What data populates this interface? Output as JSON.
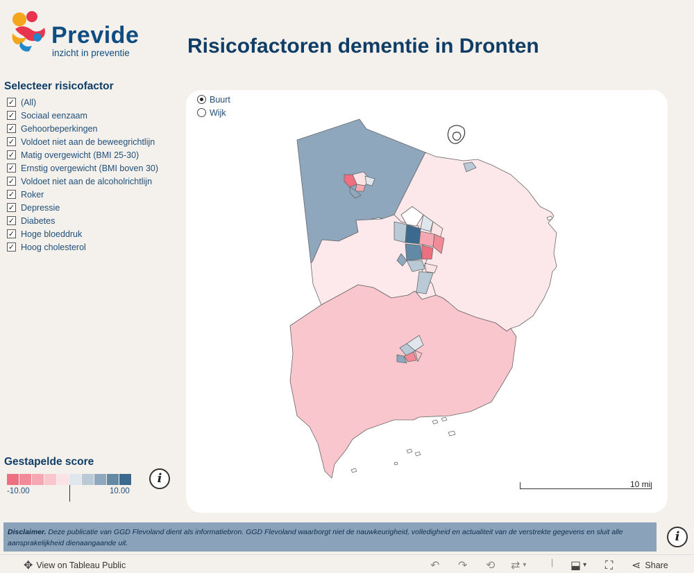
{
  "logo": {
    "name": "Previde",
    "tagline": "inzicht in preventie"
  },
  "title": "Risicofactoren dementie in Dronten",
  "filter": {
    "title": "Selecteer risicofactor",
    "items": [
      {
        "label": "(All)",
        "checked": true
      },
      {
        "label": "Sociaal eenzaam",
        "checked": true
      },
      {
        "label": "Gehoorbeperkingen",
        "checked": true
      },
      {
        "label": "Voldoet niet aan de beweegrichtlijn",
        "checked": true
      },
      {
        "label": "Matig overgewicht (BMI 25-30)",
        "checked": true
      },
      {
        "label": "Ernstig overgewicht (BMI boven 30)",
        "checked": true
      },
      {
        "label": "Voldoet niet aan de alcoholrichtlijn",
        "checked": true
      },
      {
        "label": "Roker",
        "checked": true
      },
      {
        "label": "Depressie",
        "checked": true
      },
      {
        "label": "Diabetes",
        "checked": true
      },
      {
        "label": "Hoge bloeddruk",
        "checked": true
      },
      {
        "label": "Hoog cholesterol",
        "checked": true
      }
    ]
  },
  "level_toggle": {
    "options": [
      "Buurt",
      "Wijk"
    ],
    "selected": "Buurt"
  },
  "legend": {
    "title": "Gestapelde score",
    "min": "-10.00",
    "max": "10.00",
    "colors": [
      "#ee6f80",
      "#f28b98",
      "#f5a8b1",
      "#f8c6cc",
      "#fbe3e5",
      "#dfe6ec",
      "#b9c9d6",
      "#8fa8bd",
      "#628aa6",
      "#3c6a8f"
    ]
  },
  "map": {
    "scale_label": "10 mi",
    "colors": {
      "north_west": "#8ea7bd",
      "south": "#f8c6cc",
      "east": "#fce8ea",
      "central": "#fde9ec",
      "border": "#666666"
    }
  },
  "disclaimer": {
    "lead": "Disclaimer.",
    "text": "Deze publicatie van GGD Flevoland dient als informatiebron. GGD Flevoland waarborgt niet de nauwkeurigheid, volledigheid en actualiteit van de verstrekte gegevens en sluit alle aansprakelijkheid dienaangaande uit."
  },
  "toolbar": {
    "view_label": "View on Tableau Public",
    "share_label": "Share",
    "icons": [
      "undo-icon",
      "redo-icon",
      "revert-icon",
      "refresh-icon",
      "download-icon",
      "fullscreen-icon",
      "share-icon"
    ]
  }
}
